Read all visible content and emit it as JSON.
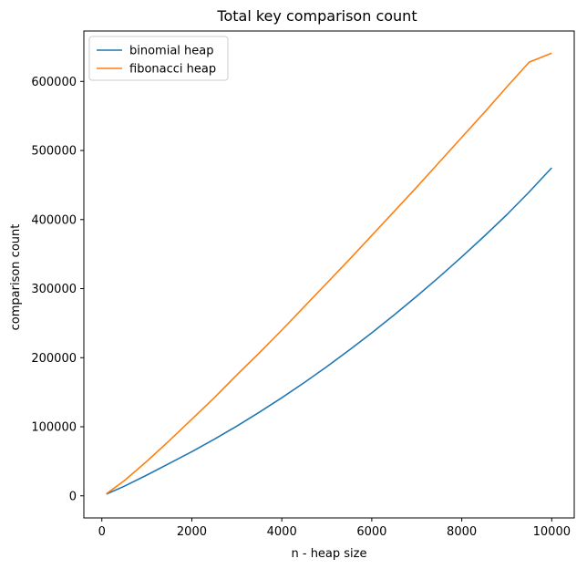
{
  "chart_data": {
    "type": "line",
    "title": "Total key comparison count",
    "xlabel": "n - heap size",
    "ylabel": "comparison count",
    "xlim": [
      -400,
      10500
    ],
    "ylim": [
      -32000,
      673000
    ],
    "xticks": [
      0,
      2000,
      4000,
      6000,
      8000,
      10000
    ],
    "yticks": [
      0,
      100000,
      200000,
      300000,
      400000,
      500000,
      600000
    ],
    "legend_position": "top-left",
    "grid": false,
    "x": [
      100,
      500,
      1000,
      1500,
      2000,
      2500,
      3000,
      3500,
      4000,
      4500,
      5000,
      5500,
      6000,
      6500,
      7000,
      7500,
      8000,
      8500,
      9000,
      9500,
      10000
    ],
    "series": [
      {
        "name": "binomial heap",
        "color": "#1f77b4",
        "values": [
          2500,
          14000,
          30000,
          47000,
          64000,
          82000,
          101000,
          121000,
          142000,
          164000,
          187000,
          211000,
          236000,
          262000,
          289000,
          317000,
          346000,
          376000,
          407000,
          440000,
          475000
        ]
      },
      {
        "name": "fibonacci heap",
        "color": "#ff7f0e",
        "values": [
          3000,
          22000,
          50000,
          80000,
          111000,
          142000,
          175000,
          207000,
          240000,
          274000,
          308000,
          342000,
          377000,
          412000,
          447000,
          483000,
          519000,
          555000,
          592000,
          628000,
          641000
        ]
      }
    ]
  }
}
